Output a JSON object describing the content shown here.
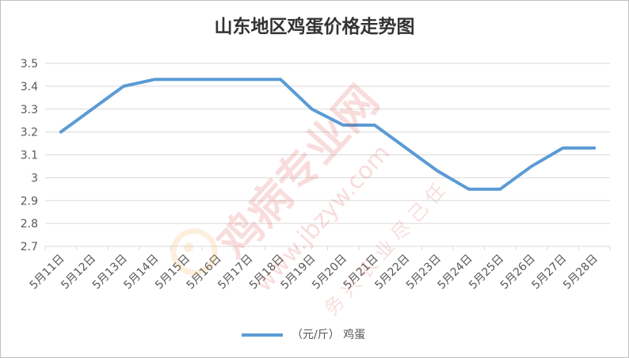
{
  "chart_data": {
    "type": "line",
    "title": "山东地区鸡蛋价格走势图",
    "categories": [
      "5月11日",
      "5月12日",
      "5月13日",
      "5月14日",
      "5月15日",
      "5月16日",
      "5月17日",
      "5月18日",
      "5月19日",
      "5月20日",
      "5月21日",
      "5月22日",
      "5月23日",
      "5月24日",
      "5月25日",
      "5月26日",
      "5月27日",
      "5月28日"
    ],
    "series": [
      {
        "name": "（元/斤） 鸡蛋",
        "color": "#5b9bd5",
        "values": [
          3.2,
          3.3,
          3.4,
          3.43,
          3.43,
          3.43,
          3.43,
          3.43,
          3.3,
          3.23,
          3.23,
          3.13,
          3.03,
          2.95,
          2.95,
          3.05,
          3.13,
          3.13
        ]
      }
    ],
    "ylim": [
      2.7,
      3.5
    ],
    "yticks": [
      "3.5",
      "3.4",
      "3.3",
      "3.2",
      "3.1",
      "3",
      "2.9",
      "2.8",
      "2.7"
    ],
    "grid": true,
    "legend": "bottom"
  },
  "watermark": {
    "main": "鸡病专业网",
    "url": "www.jbzyw.com",
    "slogan": "务 兴 农 业 尽 己 任"
  }
}
